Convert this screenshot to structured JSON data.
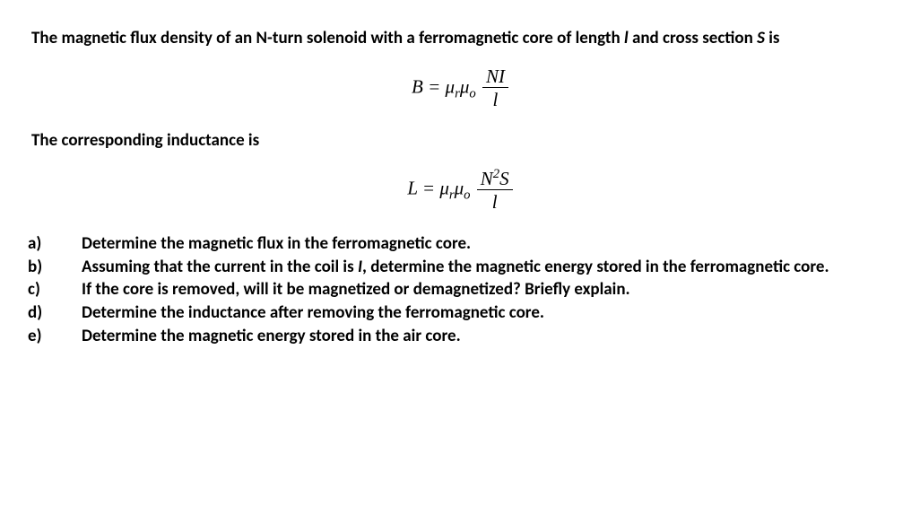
{
  "intro_part1": "The magnetic flux density of an N-turn solenoid with a ferromagnetic core of length ",
  "intro_l": "l",
  "intro_part2": " and cross section ",
  "intro_S": "S",
  "intro_part3": " is",
  "eq1_lhs": "B = μ",
  "eq1_sub_r": "r",
  "eq1_mu": "μ",
  "eq1_sub_o": "o",
  "eq1_num": "NI",
  "eq1_den": "l",
  "subhead": "The corresponding inductance is",
  "eq2_lhs": "L = μ",
  "eq2_sub_r": "r",
  "eq2_mu": "μ",
  "eq2_sub_o": "o",
  "eq2_num_a": "N",
  "eq2_num_sup": "2",
  "eq2_num_b": "S",
  "eq2_den": "l",
  "items": {
    "a_marker": "a)",
    "a_text": "Determine the magnetic flux in the ferromagnetic core.",
    "b_marker": "b)",
    "b_text_1": "Assuming that the current in the coil is ",
    "b_I": "I",
    "b_text_2": ", determine the magnetic energy stored in the ferromagnetic core.",
    "c_marker": "c)",
    "c_text": "If the core is removed, will it be magnetized or demagnetized? Briefly explain.",
    "d_marker": "d)",
    "d_text": "Determine the inductance after removing the ferromagnetic core.",
    "e_marker": "e)",
    "e_text": "Determine the magnetic energy stored in the air core."
  }
}
